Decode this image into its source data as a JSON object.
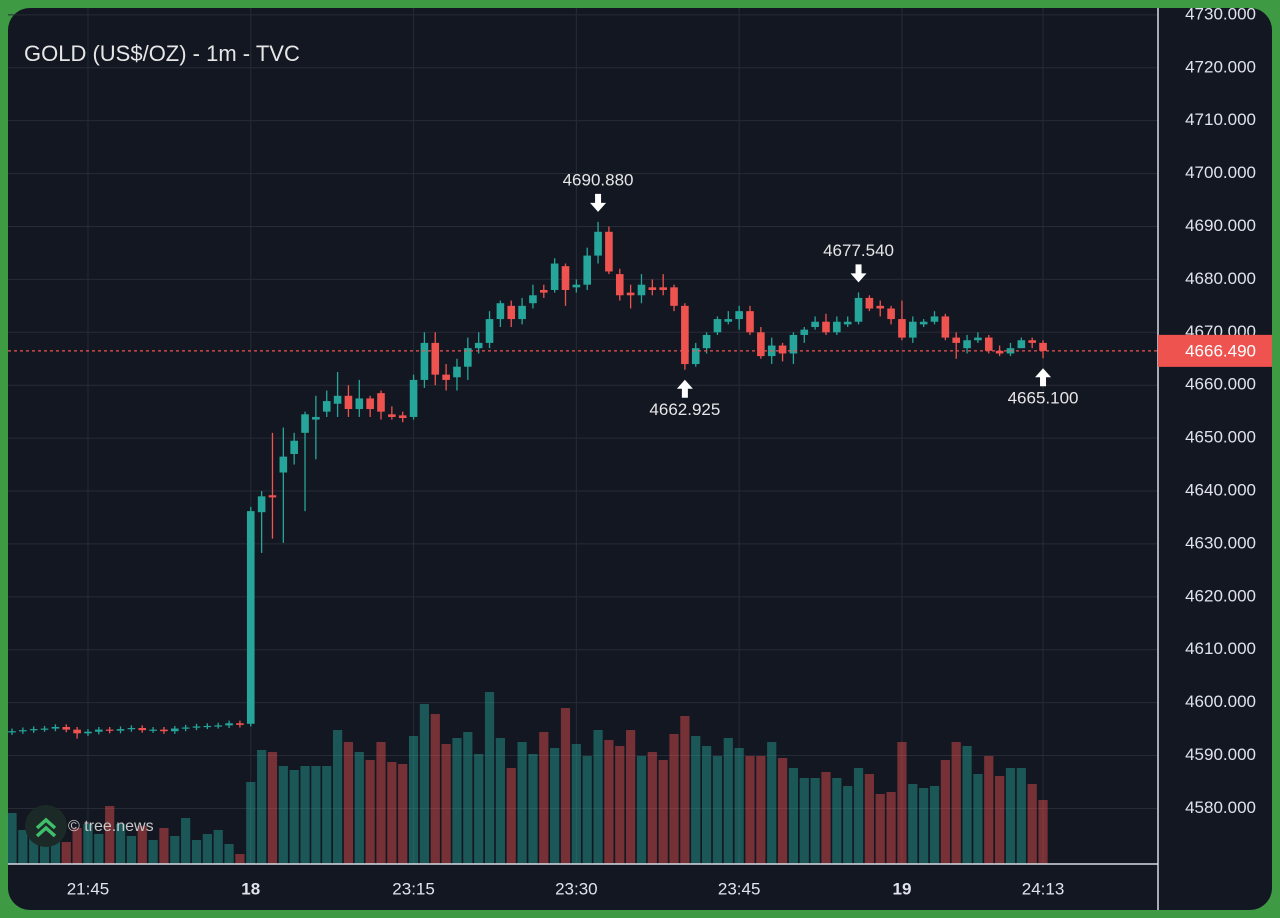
{
  "chart_data": {
    "type": "candlestick",
    "title": "GOLD (US$/OZ) - 1m - TVC",
    "watermark": "© tree.news",
    "categories": [
      null,
      null,
      null,
      null,
      null,
      null,
      null,
      "21:45",
      null,
      null,
      null,
      null,
      null,
      null,
      null,
      null,
      null,
      null,
      null,
      null,
      null,
      null,
      "18",
      null,
      null,
      null,
      null,
      null,
      null,
      null,
      null,
      null,
      null,
      null,
      null,
      null,
      null,
      "23:15",
      null,
      null,
      null,
      null,
      null,
      null,
      null,
      null,
      null,
      null,
      null,
      null,
      null,
      null,
      "23:30",
      null,
      null,
      null,
      null,
      null,
      null,
      null,
      null,
      null,
      null,
      null,
      null,
      null,
      null,
      "23:45",
      null,
      null,
      null,
      null,
      null,
      null,
      null,
      null,
      null,
      null,
      null,
      null,
      null,
      null,
      "19",
      null,
      null,
      null,
      null,
      null,
      null,
      null,
      null,
      null,
      null,
      null,
      null,
      "24:13"
    ],
    "open": [
      4594.4,
      4594.6,
      4594.8,
      4595.0,
      4595.1,
      4595.4,
      4594.9,
      4594.2,
      4594.5,
      4594.9,
      4594.7,
      4595.0,
      4595.2,
      4594.8,
      4594.9,
      4594.6,
      4595.1,
      4595.3,
      4595.5,
      4595.6,
      4595.7,
      4596.1,
      4596.0,
      4636.0,
      4639.2,
      4643.5,
      4647.0,
      4651.0,
      4653.5,
      4655.0,
      4656.5,
      4658.0,
      4655.5,
      4657.5,
      4658.5,
      4654.5,
      4654.3,
      4654.0,
      4661.0,
      4668.0,
      4662.0,
      4661.5,
      4663.5,
      4667.0,
      4668.0,
      4672.5,
      4675.0,
      4672.5,
      4675.5,
      4678.0,
      4678.0,
      4682.5,
      4678.5,
      4679.0,
      4684.5,
      4689.0,
      4681.0,
      4677.5,
      4677.0,
      4678.5,
      4678.5,
      4678.5,
      4675.0,
      4664.0,
      4667.0,
      4670.0,
      4672.0,
      4672.5,
      4674.0,
      4670.0,
      4665.5,
      4667.5,
      4666.0,
      4669.5,
      4671.0,
      4672.0,
      4670.0,
      4671.5,
      4672.0,
      4676.5,
      4675.0,
      4674.5,
      4672.5,
      4669.0,
      4671.5,
      4672.0,
      4673.0,
      4669.0,
      4667.0,
      4668.5,
      4669.0,
      4666.5,
      4666.0,
      4667.0,
      4668.5,
      4668.0
    ],
    "high": [
      4595.1,
      4595.3,
      4595.5,
      4595.6,
      4595.9,
      4595.9,
      4595.4,
      4595.0,
      4595.4,
      4595.4,
      4595.5,
      4595.7,
      4595.7,
      4595.4,
      4595.4,
      4595.6,
      4595.8,
      4596.0,
      4596.1,
      4596.2,
      4596.6,
      4596.6,
      4637.0,
      4640.0,
      4651.0,
      4652.0,
      4651.0,
      4655.0,
      4658.0,
      4659.0,
      4662.5,
      4660.0,
      4661.0,
      4658.0,
      4659.0,
      4656.0,
      4655.0,
      4662.0,
      4670.0,
      4670.0,
      4664.0,
      4665.0,
      4669.0,
      4670.0,
      4674.0,
      4676.0,
      4676.0,
      4676.5,
      4679.0,
      4679.0,
      4684.0,
      4683.0,
      4680.0,
      4686.0,
      4690.88,
      4690.0,
      4682.0,
      4679.0,
      4681.0,
      4680.0,
      4681.0,
      4679.0,
      4675.5,
      4668.0,
      4670.0,
      4673.0,
      4674.0,
      4675.0,
      4675.0,
      4671.0,
      4669.0,
      4668.0,
      4670.0,
      4671.0,
      4673.0,
      4673.5,
      4673.0,
      4673.0,
      4677.54,
      4677.0,
      4676.0,
      4675.0,
      4676.0,
      4673.0,
      4672.5,
      4674.0,
      4673.5,
      4670.0,
      4669.5,
      4670.0,
      4669.5,
      4667.5,
      4668.0,
      4669.0,
      4669.0,
      4668.5
    ],
    "low": [
      4593.9,
      4594.1,
      4594.3,
      4594.5,
      4594.6,
      4594.4,
      4593.2,
      4593.7,
      4594.0,
      4594.2,
      4594.2,
      4594.5,
      4594.3,
      4594.3,
      4594.1,
      4594.1,
      4594.6,
      4594.8,
      4595.0,
      4595.1,
      4595.2,
      4595.3,
      4595.5,
      4628.3,
      4631.0,
      4630.2,
      4645.0,
      4636.2,
      4646.0,
      4654.0,
      4654.0,
      4654.0,
      4654.0,
      4654.0,
      4653.5,
      4653.5,
      4653.0,
      4653.5,
      4659.5,
      4660.0,
      4659.0,
      4659.0,
      4661.0,
      4666.0,
      4667.0,
      4671.0,
      4671.0,
      4671.5,
      4674.5,
      4676.5,
      4677.5,
      4675.0,
      4677.5,
      4678.0,
      4683.0,
      4681.0,
      4676.0,
      4674.5,
      4675.5,
      4677.0,
      4677.0,
      4674.0,
      4662.925,
      4663.5,
      4666.0,
      4669.5,
      4671.5,
      4670.5,
      4669.5,
      4665.0,
      4664.0,
      4664.5,
      4664.0,
      4668.0,
      4670.5,
      4669.5,
      4669.5,
      4671.0,
      4671.5,
      4674.0,
      4673.0,
      4671.5,
      4668.5,
      4668.0,
      4671.0,
      4671.5,
      4668.5,
      4665.0,
      4666.0,
      4668.0,
      4666.0,
      4665.5,
      4665.5,
      4667.0,
      4667.0,
      4665.1
    ],
    "close": [
      4594.6,
      4594.8,
      4595.0,
      4595.1,
      4595.4,
      4594.9,
      4594.2,
      4594.5,
      4594.9,
      4594.7,
      4595.0,
      4595.2,
      4594.8,
      4594.9,
      4594.6,
      4595.1,
      4595.3,
      4595.5,
      4595.6,
      4595.7,
      4596.1,
      4595.8,
      4636.2,
      4639.0,
      4638.8,
      4646.5,
      4649.5,
      4654.5,
      4654.0,
      4657.0,
      4658.0,
      4655.5,
      4657.5,
      4655.5,
      4655.0,
      4654.0,
      4653.8,
      4661.0,
      4668.0,
      4662.0,
      4661.0,
      4663.5,
      4667.0,
      4668.0,
      4672.5,
      4675.5,
      4672.5,
      4675.0,
      4677.0,
      4677.5,
      4683.0,
      4678.0,
      4679.0,
      4684.5,
      4689.0,
      4681.5,
      4677.0,
      4677.0,
      4679.0,
      4678.0,
      4678.0,
      4675.0,
      4664.0,
      4667.0,
      4669.5,
      4672.5,
      4672.5,
      4674.0,
      4670.0,
      4665.5,
      4667.5,
      4666.0,
      4669.5,
      4670.5,
      4672.0,
      4670.0,
      4672.0,
      4672.0,
      4676.5,
      4674.5,
      4674.5,
      4672.5,
      4669.0,
      4672.0,
      4672.0,
      4673.0,
      4669.0,
      4668.0,
      4668.5,
      4669.0,
      4666.5,
      4666.0,
      4667.0,
      4668.5,
      4668.0,
      4666.49
    ],
    "volume": [
      51,
      34,
      26,
      18,
      30,
      22,
      36,
      40,
      30,
      58,
      40,
      28,
      38,
      24,
      36,
      28,
      46,
      24,
      30,
      34,
      20,
      10,
      82,
      114,
      112,
      98,
      94,
      98,
      98,
      98,
      134,
      122,
      112,
      104,
      122,
      102,
      100,
      128,
      160,
      150,
      120,
      126,
      132,
      110,
      172,
      126,
      96,
      122,
      110,
      132,
      116,
      156,
      120,
      108,
      134,
      124,
      118,
      134,
      108,
      112,
      104,
      130,
      148,
      128,
      118,
      108,
      126,
      116,
      108,
      108,
      122,
      106,
      96,
      86,
      86,
      92,
      86,
      78,
      96,
      90,
      70,
      72,
      122,
      80,
      76,
      78,
      104,
      122,
      118,
      90,
      108,
      88,
      96,
      96,
      80,
      64
    ],
    "up_color": "#26a69a",
    "down_color": "#ef5350",
    "ylim": [
      4569.5,
      4731.3
    ],
    "yticks": [
      {
        "value": 4580,
        "label": "4580.000"
      },
      {
        "value": 4590,
        "label": "4590.000"
      },
      {
        "value": 4600,
        "label": "4600.000"
      },
      {
        "value": 4610,
        "label": "4610.000"
      },
      {
        "value": 4620,
        "label": "4620.000"
      },
      {
        "value": 4630,
        "label": "4630.000"
      },
      {
        "value": 4640,
        "label": "4640.000"
      },
      {
        "value": 4650,
        "label": "4650.000"
      },
      {
        "value": 4660,
        "label": "4660.000"
      },
      {
        "value": 4670,
        "label": "4670.000"
      },
      {
        "value": 4680,
        "label": "4680.000"
      },
      {
        "value": 4690,
        "label": "4690.000"
      },
      {
        "value": 4700,
        "label": "4700.000"
      },
      {
        "value": 4710,
        "label": "4710.000"
      },
      {
        "value": 4720,
        "label": "4720.000"
      },
      {
        "value": 4730,
        "label": "4730.000"
      }
    ],
    "grid": true,
    "last_price": {
      "value": 4666.49,
      "label": "4666.490"
    },
    "annotations": [
      {
        "x": 54,
        "value": 4690.88,
        "label": "4690.880",
        "position": "above"
      },
      {
        "x": 62,
        "value": 4662.925,
        "label": "4662.925",
        "position": "below"
      },
      {
        "x": 78,
        "value": 4677.54,
        "label": "4677.540",
        "position": "above"
      },
      {
        "x": 95,
        "value": 4665.1,
        "label": "4665.100",
        "position": "below"
      }
    ]
  }
}
